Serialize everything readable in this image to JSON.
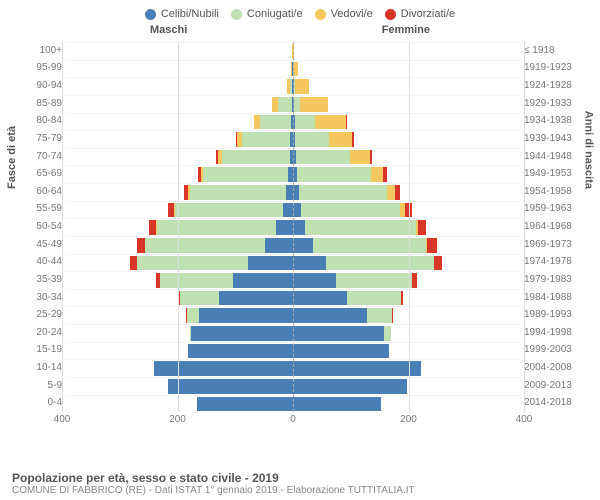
{
  "legend": [
    {
      "label": "Celibi/Nubili",
      "color": "#4a7fb6"
    },
    {
      "label": "Coniugati/e",
      "color": "#bfe0b0"
    },
    {
      "label": "Vedovi/e",
      "color": "#f5c85f"
    },
    {
      "label": "Divorziati/e",
      "color": "#d9362a"
    }
  ],
  "headers": {
    "male": "Maschi",
    "female": "Femmine"
  },
  "axis_labels": {
    "left": "Fasce di età",
    "right": "Anni di nascita"
  },
  "chart": {
    "type": "population-pyramid",
    "x_max": 400,
    "x_ticks": [
      400,
      200,
      0,
      200,
      400
    ],
    "background": "#ffffff",
    "grid_color": "#dddddd",
    "rows": [
      {
        "age": "100+",
        "year": "≤ 1918",
        "m": {
          "c": 0,
          "g": 0,
          "v": 1,
          "d": 0
        },
        "f": {
          "c": 0,
          "g": 0,
          "v": 1,
          "d": 0
        }
      },
      {
        "age": "95-99",
        "year": "1919-1923",
        "m": {
          "c": 1,
          "g": 0,
          "v": 2,
          "d": 0
        },
        "f": {
          "c": 0,
          "g": 0,
          "v": 8,
          "d": 0
        }
      },
      {
        "age": "90-94",
        "year": "1924-1928",
        "m": {
          "c": 1,
          "g": 5,
          "v": 4,
          "d": 0
        },
        "f": {
          "c": 1,
          "g": 2,
          "v": 25,
          "d": 0
        }
      },
      {
        "age": "85-89",
        "year": "1929-1933",
        "m": {
          "c": 2,
          "g": 25,
          "v": 10,
          "d": 0
        },
        "f": {
          "c": 2,
          "g": 10,
          "v": 50,
          "d": 0
        }
      },
      {
        "age": "80-84",
        "year": "1934-1938",
        "m": {
          "c": 3,
          "g": 55,
          "v": 10,
          "d": 0
        },
        "f": {
          "c": 3,
          "g": 35,
          "v": 55,
          "d": 1
        }
      },
      {
        "age": "75-79",
        "year": "1939-1943",
        "m": {
          "c": 5,
          "g": 85,
          "v": 8,
          "d": 2
        },
        "f": {
          "c": 4,
          "g": 60,
          "v": 40,
          "d": 3
        }
      },
      {
        "age": "70-74",
        "year": "1944-1948",
        "m": {
          "c": 6,
          "g": 120,
          "v": 6,
          "d": 4
        },
        "f": {
          "c": 5,
          "g": 95,
          "v": 35,
          "d": 5
        }
      },
      {
        "age": "65-69",
        "year": "1949-1953",
        "m": {
          "c": 8,
          "g": 150,
          "v": 4,
          "d": 6
        },
        "f": {
          "c": 7,
          "g": 130,
          "v": 22,
          "d": 7
        }
      },
      {
        "age": "60-64",
        "year": "1954-1958",
        "m": {
          "c": 12,
          "g": 170,
          "v": 3,
          "d": 8
        },
        "f": {
          "c": 10,
          "g": 155,
          "v": 14,
          "d": 9
        }
      },
      {
        "age": "55-59",
        "year": "1959-1963",
        "m": {
          "c": 18,
          "g": 190,
          "v": 2,
          "d": 10
        },
        "f": {
          "c": 14,
          "g": 175,
          "v": 8,
          "d": 12
        }
      },
      {
        "age": "50-54",
        "year": "1964-1968",
        "m": {
          "c": 30,
          "g": 210,
          "v": 1,
          "d": 12
        },
        "f": {
          "c": 22,
          "g": 195,
          "v": 4,
          "d": 14
        }
      },
      {
        "age": "45-49",
        "year": "1969-1973",
        "m": {
          "c": 50,
          "g": 210,
          "v": 1,
          "d": 14
        },
        "f": {
          "c": 35,
          "g": 200,
          "v": 2,
          "d": 16
        }
      },
      {
        "age": "40-44",
        "year": "1974-1978",
        "m": {
          "c": 80,
          "g": 195,
          "v": 0,
          "d": 12
        },
        "f": {
          "c": 58,
          "g": 190,
          "v": 1,
          "d": 14
        }
      },
      {
        "age": "35-39",
        "year": "1979-1983",
        "m": {
          "c": 105,
          "g": 130,
          "v": 0,
          "d": 6
        },
        "f": {
          "c": 75,
          "g": 135,
          "v": 0,
          "d": 8
        }
      },
      {
        "age": "30-34",
        "year": "1984-1988",
        "m": {
          "c": 130,
          "g": 70,
          "v": 0,
          "d": 3
        },
        "f": {
          "c": 95,
          "g": 95,
          "v": 0,
          "d": 4
        }
      },
      {
        "age": "25-29",
        "year": "1989-1993",
        "m": {
          "c": 165,
          "g": 22,
          "v": 0,
          "d": 1
        },
        "f": {
          "c": 130,
          "g": 45,
          "v": 0,
          "d": 1
        }
      },
      {
        "age": "20-24",
        "year": "1994-1998",
        "m": {
          "c": 180,
          "g": 2,
          "v": 0,
          "d": 0
        },
        "f": {
          "c": 160,
          "g": 12,
          "v": 0,
          "d": 0
        }
      },
      {
        "age": "15-19",
        "year": "1999-2003",
        "m": {
          "c": 185,
          "g": 0,
          "v": 0,
          "d": 0
        },
        "f": {
          "c": 170,
          "g": 0,
          "v": 0,
          "d": 0
        }
      },
      {
        "age": "10-14",
        "year": "2004-2008",
        "m": {
          "c": 245,
          "g": 0,
          "v": 0,
          "d": 0
        },
        "f": {
          "c": 225,
          "g": 0,
          "v": 0,
          "d": 0
        }
      },
      {
        "age": "5-9",
        "year": "2009-2013",
        "m": {
          "c": 220,
          "g": 0,
          "v": 0,
          "d": 0
        },
        "f": {
          "c": 200,
          "g": 0,
          "v": 0,
          "d": 0
        }
      },
      {
        "age": "0-4",
        "year": "2014-2018",
        "m": {
          "c": 170,
          "g": 0,
          "v": 0,
          "d": 0
        },
        "f": {
          "c": 155,
          "g": 0,
          "v": 0,
          "d": 0
        }
      }
    ]
  },
  "footer": {
    "title": "Popolazione per età, sesso e stato civile - 2019",
    "sub": "COMUNE DI FABBRICO (RE) - Dati ISTAT 1° gennaio 2019 - Elaborazione TUTTITALIA.IT"
  }
}
